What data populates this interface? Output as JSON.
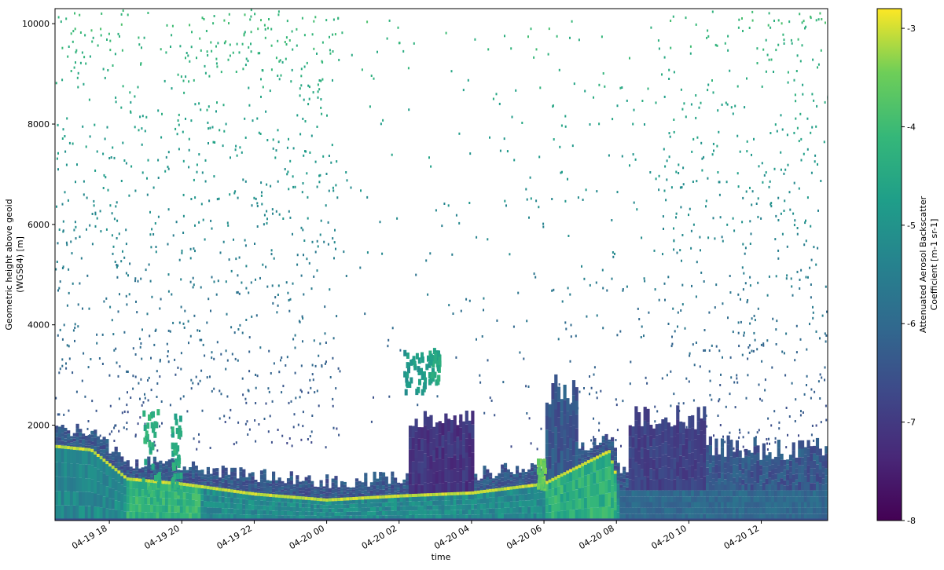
{
  "chart_data": {
    "type": "heatmap",
    "title": "",
    "xlabel": "time",
    "ylabel": "Geometric height above geoid\n(WGS84) [m]",
    "x_range": [
      "2019-04-19T16:30",
      "2019-04-20T13:50"
    ],
    "ylim": [
      100,
      10300
    ],
    "x_ticks": [
      {
        "label": "04-19 18",
        "hours": 1.5
      },
      {
        "label": "04-19 20",
        "hours": 3.5
      },
      {
        "label": "04-19 22",
        "hours": 5.5
      },
      {
        "label": "04-20 00",
        "hours": 7.5
      },
      {
        "label": "04-20 02",
        "hours": 9.5
      },
      {
        "label": "04-20 04",
        "hours": 11.5
      },
      {
        "label": "04-20 06",
        "hours": 13.5
      },
      {
        "label": "04-20 08",
        "hours": 15.5
      },
      {
        "label": "04-20 10",
        "hours": 17.5
      },
      {
        "label": "04-20 12",
        "hours": 19.5
      }
    ],
    "y_ticks": [
      2000,
      4000,
      6000,
      8000,
      10000
    ],
    "colorbar": {
      "label": "Attenuated Aerosol Backscatter\nCoefficient [m-1 sr-1]",
      "min": -8,
      "max": -2.8,
      "ticks": [
        -8,
        -7,
        -6,
        -5,
        -4,
        -3
      ],
      "colormap": "viridis"
    },
    "features": {
      "boundary_layer_top_m": [
        {
          "hours": 0.0,
          "value": 1550
        },
        {
          "hours": 1.0,
          "value": 1480
        },
        {
          "hours": 2.0,
          "value": 900
        },
        {
          "hours": 3.5,
          "value": 800
        },
        {
          "hours": 5.5,
          "value": 600
        },
        {
          "hours": 7.5,
          "value": 480
        },
        {
          "hours": 9.5,
          "value": 560
        },
        {
          "hours": 11.5,
          "value": 620
        },
        {
          "hours": 13.5,
          "value": 800
        },
        {
          "hours": 15.3,
          "value": 1450
        },
        {
          "hours": 15.6,
          "value": 700
        },
        {
          "hours": 21.3,
          "value": 700
        }
      ]
    }
  }
}
